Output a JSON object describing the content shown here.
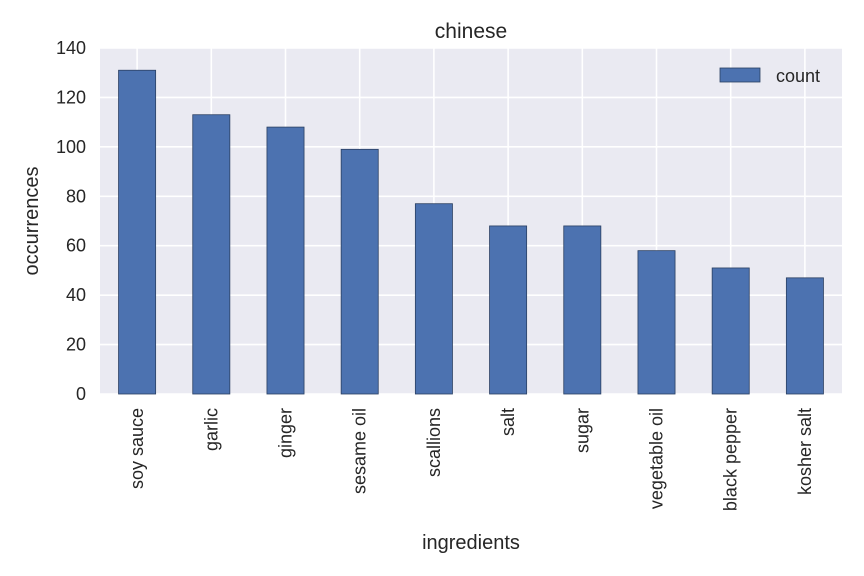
{
  "chart_data": {
    "type": "bar",
    "title": "chinese",
    "xlabel": "ingredients",
    "ylabel": "occurrences",
    "categories": [
      "soy sauce",
      "garlic",
      "ginger",
      "sesame oil",
      "scallions",
      "salt",
      "sugar",
      "vegetable oil",
      "black pepper",
      "kosher salt"
    ],
    "series": [
      {
        "name": "count",
        "values": [
          131,
          113,
          108,
          99,
          77,
          68,
          68,
          58,
          51,
          47
        ]
      }
    ],
    "ylim": [
      0,
      140
    ],
    "yticks": [
      0,
      20,
      40,
      60,
      80,
      100,
      120,
      140
    ],
    "grid": true,
    "legend_position": "top-right",
    "colors": {
      "bar": "#4c72b0",
      "bar_edge": "#2a3f62",
      "plot_background": "#eaeaf2",
      "grid": "#ffffff"
    }
  }
}
